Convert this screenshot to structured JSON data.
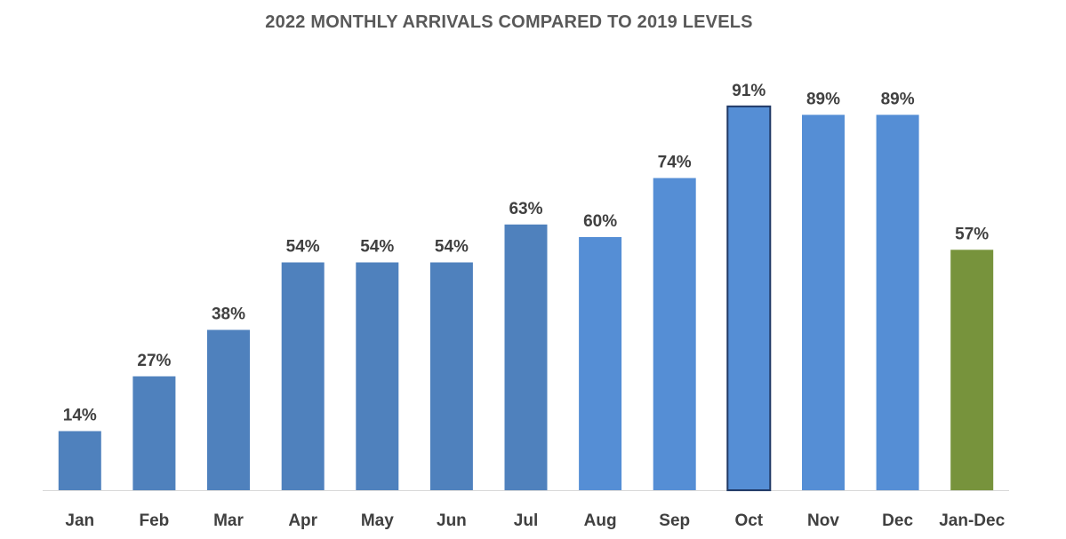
{
  "chart_data": {
    "type": "bar",
    "title": "2022 MONTHLY ARRIVALS COMPARED TO 2019 LEVELS",
    "xlabel": "",
    "ylabel": "",
    "categories": [
      "Jan",
      "Feb",
      "Mar",
      "Apr",
      "May",
      "Jun",
      "Jul",
      "Aug",
      "Sep",
      "Oct",
      "Nov",
      "Dec",
      "Jan-Dec"
    ],
    "values": [
      14,
      27,
      38,
      54,
      54,
      54,
      63,
      60,
      74,
      91,
      89,
      89,
      57
    ],
    "data_labels": [
      "14%",
      "27%",
      "38%",
      "54%",
      "54%",
      "54%",
      "63%",
      "60%",
      "74%",
      "91%",
      "89%",
      "89%",
      "57%"
    ],
    "ylim": [
      0,
      100
    ],
    "grid": false,
    "legend": "none",
    "colors": [
      "#4f81bd",
      "#4f81bd",
      "#4f81bd",
      "#4f81bd",
      "#4f81bd",
      "#4f81bd",
      "#4f81bd",
      "#558ed5",
      "#558ed5",
      "#558ed5",
      "#558ed5",
      "#558ed5",
      "#77933c"
    ],
    "axis_color": "#d9d9d9",
    "highlight_outline": {
      "index": 9,
      "color": "#1f3864"
    }
  }
}
